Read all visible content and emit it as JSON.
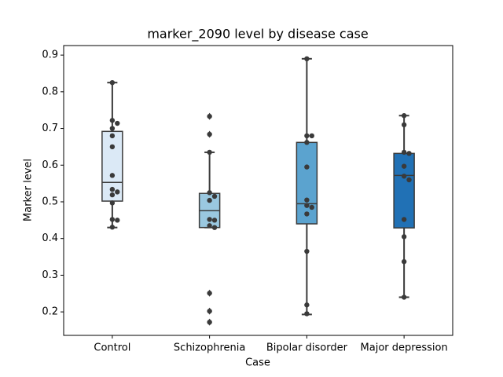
{
  "chart_data": {
    "type": "box",
    "title": "marker_2090 level by disease case",
    "x_label": "Case",
    "y_label": "Marker level",
    "categories": [
      "Control",
      "Schizophrenia",
      "Bipolar disorder",
      "Major depression"
    ],
    "colors": [
      "#dbe9f6",
      "#9ac8e0",
      "#5ba3cf",
      "#2171b5"
    ],
    "boxes": [
      {
        "whislo": 0.43,
        "q1": 0.502,
        "median": 0.553,
        "q3": 0.692,
        "whishi": 0.825,
        "fliers": []
      },
      {
        "whislo": 0.43,
        "q1": 0.43,
        "median": 0.476,
        "q3": 0.523,
        "whishi": 0.635,
        "fliers": [
          0.733,
          0.684,
          0.251,
          0.202,
          0.172
        ]
      },
      {
        "whislo": 0.193,
        "q1": 0.44,
        "median": 0.495,
        "q3": 0.662,
        "whishi": 0.89,
        "fliers": []
      },
      {
        "whislo": 0.24,
        "q1": 0.429,
        "median": 0.572,
        "q3": 0.632,
        "whishi": 0.735,
        "fliers": []
      }
    ],
    "points": [
      [
        0.825,
        0.722,
        0.714,
        0.7,
        0.68,
        0.65,
        0.572,
        0.534,
        0.527,
        0.519,
        0.497,
        0.452,
        0.45,
        0.431
      ],
      [
        0.733,
        0.684,
        0.635,
        0.525,
        0.515,
        0.504,
        0.452,
        0.45,
        0.435,
        0.43,
        0.251,
        0.202,
        0.172
      ],
      [
        0.89,
        0.68,
        0.68,
        0.662,
        0.595,
        0.505,
        0.49,
        0.485,
        0.467,
        0.365,
        0.219,
        0.195
      ],
      [
        0.735,
        0.71,
        0.635,
        0.632,
        0.597,
        0.57,
        0.56,
        0.452,
        0.405,
        0.337,
        0.24
      ]
    ],
    "point_color": "#3a3a3a",
    "ylim": [
      0.136,
      0.926
    ],
    "yticks": [
      0.2,
      0.3,
      0.4,
      0.5,
      0.6,
      0.7,
      0.8,
      0.9
    ]
  }
}
